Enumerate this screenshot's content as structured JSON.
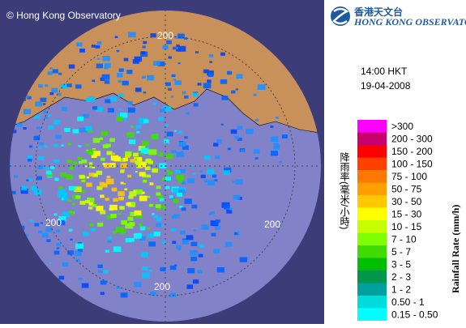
{
  "header": {
    "copyright": "© Hong Kong Observatory",
    "logo_chinese": "香港天文台",
    "logo_english": "HONG KONG OBSERVATORY",
    "time": "14:00 HKT",
    "date": "19-04-2008"
  },
  "map": {
    "range_labels": [
      "200",
      "200",
      "200",
      "200"
    ]
  },
  "legend": {
    "title_chinese": "降雨率(毫米/小時)",
    "title_english": "Rainfall Rate (mm/h)",
    "items": [
      {
        "label": ">300",
        "color": "#ff00ff"
      },
      {
        "label": "200 - 300",
        "color": "#c8006e"
      },
      {
        "label": "150 - 200",
        "color": "#ff0000"
      },
      {
        "label": "100 - 150",
        "color": "#ff4000"
      },
      {
        "label": "75 - 100",
        "color": "#ff7800"
      },
      {
        "label": "50 - 75",
        "color": "#ffa000"
      },
      {
        "label": "30 - 50",
        "color": "#ffc800"
      },
      {
        "label": "15 - 30",
        "color": "#ffff00"
      },
      {
        "label": "10 - 15",
        "color": "#c8ff00"
      },
      {
        "label": "7 - 10",
        "color": "#80ff00"
      },
      {
        "label": "5 - 7",
        "color": "#40dc00"
      },
      {
        "label": "3 - 5",
        "color": "#00be00"
      },
      {
        "label": "2 - 3",
        "color": "#00964b"
      },
      {
        "label": "1 - 2",
        "color": "#00a0a0"
      },
      {
        "label": "0.50 - 1",
        "color": "#00dcdc"
      },
      {
        "label": "0.15 - 0.50",
        "color": "#00ffff"
      }
    ]
  }
}
